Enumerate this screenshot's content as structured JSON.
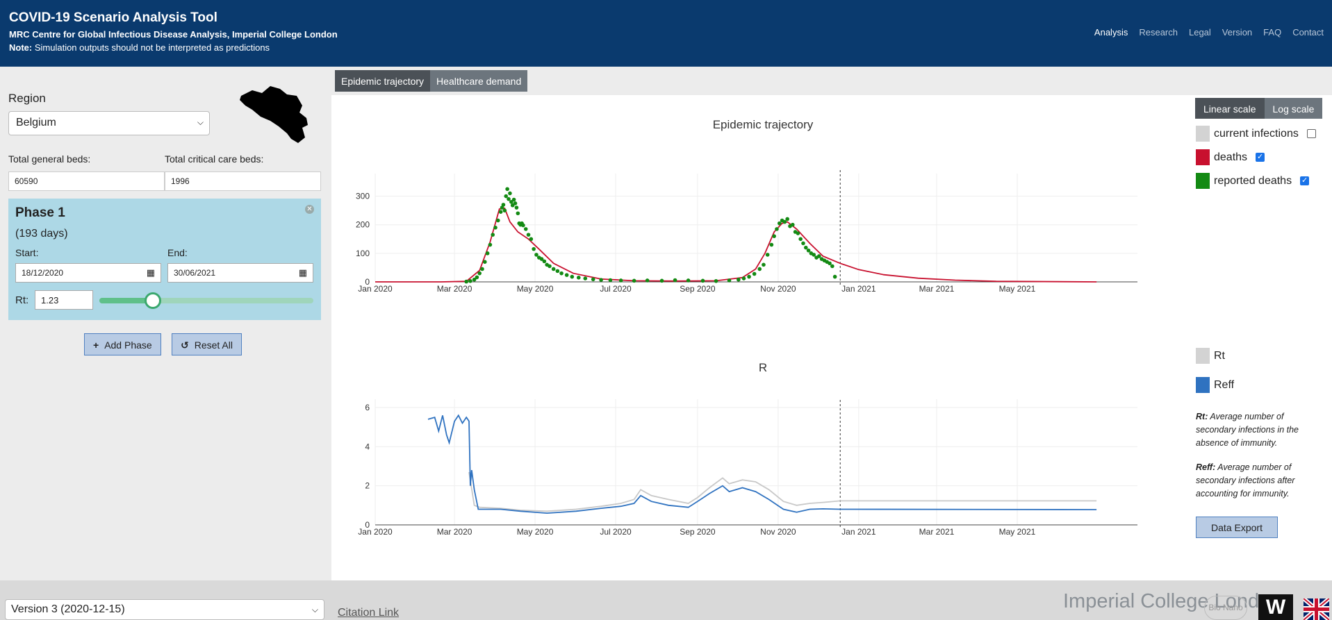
{
  "header": {
    "title": "COVID-19 Scenario Analysis Tool",
    "subtitle": "MRC Centre for Global Infectious Disease Analysis, Imperial College London",
    "note_label": "Note:",
    "note_text": "Simulation outputs should not be interpreted as predictions",
    "nav": [
      "Analysis",
      "Research",
      "Legal",
      "Version",
      "FAQ",
      "Contact"
    ],
    "active_nav": "Analysis"
  },
  "sidebar": {
    "region_label": "Region",
    "region_value": "Belgium",
    "general_beds_label": "Total general beds:",
    "general_beds_value": "60590",
    "critical_beds_label": "Total critical care beds:",
    "critical_beds_value": "1996",
    "phase": {
      "title": "Phase 1",
      "days": "(193 days)",
      "start_label": "Start:",
      "start_value": "18/12/2020",
      "end_label": "End:",
      "end_value": "30/06/2021",
      "rt_label": "Rt:",
      "rt_value": "1.23",
      "slider_fraction": 0.25
    },
    "add_phase_label": "Add Phase",
    "reset_label": "Reset All"
  },
  "tabs": [
    "Epidemic trajectory",
    "Healthcare demand"
  ],
  "scale_buttons": [
    "Linear scale",
    "Log scale"
  ],
  "legend_top": [
    {
      "label": "current infections",
      "color": "#d3d3d3",
      "checked": false
    },
    {
      "label": "deaths",
      "color": "#c8102e",
      "checked": true
    },
    {
      "label": "reported deaths",
      "color": "#138a13",
      "checked": true
    }
  ],
  "legend_bottom": [
    {
      "label": "Rt",
      "color": "#d3d3d3"
    },
    {
      "label": "Reff",
      "color": "#2f72c0"
    }
  ],
  "notes": {
    "rt_term": "Rt:",
    "rt_desc": "Average number of secondary infections in the absence of immunity.",
    "reff_term": "Reff:",
    "reff_desc": "Average number of secondary infections after accounting for immunity."
  },
  "export_label": "Data Export",
  "footer": {
    "version": "Version 3 (2020-12-15)",
    "citation": "Citation Link",
    "logo_imperial": "Imperial College London",
    "logo_bionano": "Bio Nano",
    "logo_w": "W"
  },
  "chart_data": [
    {
      "type": "line",
      "title": "Epidemic trajectory",
      "x_ticks": [
        "Jan 2020",
        "Mar 2020",
        "May 2020",
        "Jul 2020",
        "Sep 2020",
        "Nov 2020",
        "Jan 2021",
        "Mar 2021",
        "May 2021"
      ],
      "y_ticks": [
        0,
        100,
        200,
        300
      ],
      "ylim": [
        0,
        350
      ],
      "vline_date": "2020-12-18",
      "series": [
        {
          "name": "deaths",
          "color": "#c8102e",
          "points": [
            [
              "2020-01-01",
              0
            ],
            [
              "2020-02-20",
              0
            ],
            [
              "2020-03-10",
              2
            ],
            [
              "2020-03-20",
              40
            ],
            [
              "2020-03-28",
              140
            ],
            [
              "2020-04-04",
              255
            ],
            [
              "2020-04-08",
              258
            ],
            [
              "2020-04-12",
              210
            ],
            [
              "2020-04-18",
              175
            ],
            [
              "2020-04-26",
              150
            ],
            [
              "2020-05-05",
              110
            ],
            [
              "2020-05-15",
              65
            ],
            [
              "2020-05-30",
              30
            ],
            [
              "2020-06-20",
              10
            ],
            [
              "2020-07-15",
              4
            ],
            [
              "2020-08-15",
              3
            ],
            [
              "2020-09-15",
              4
            ],
            [
              "2020-10-05",
              15
            ],
            [
              "2020-10-15",
              45
            ],
            [
              "2020-10-22",
              100
            ],
            [
              "2020-10-29",
              175
            ],
            [
              "2020-11-04",
              205
            ],
            [
              "2020-11-08",
              210
            ],
            [
              "2020-11-15",
              185
            ],
            [
              "2020-11-25",
              135
            ],
            [
              "2020-12-05",
              90
            ],
            [
              "2020-12-18",
              65
            ],
            [
              "2021-01-01",
              43
            ],
            [
              "2021-01-20",
              25
            ],
            [
              "2021-02-15",
              13
            ],
            [
              "2021-03-15",
              6
            ],
            [
              "2021-04-15",
              2
            ],
            [
              "2021-06-30",
              0
            ]
          ]
        },
        {
          "name": "reported deaths",
          "color": "#138a13",
          "scatter": true,
          "points": [
            [
              "2020-03-10",
              1
            ],
            [
              "2020-03-13",
              3
            ],
            [
              "2020-03-16",
              8
            ],
            [
              "2020-03-18",
              16
            ],
            [
              "2020-03-20",
              30
            ],
            [
              "2020-03-22",
              45
            ],
            [
              "2020-03-24",
              70
            ],
            [
              "2020-03-26",
              100
            ],
            [
              "2020-03-28",
              130
            ],
            [
              "2020-03-30",
              165
            ],
            [
              "2020-04-01",
              190
            ],
            [
              "2020-04-03",
              215
            ],
            [
              "2020-04-05",
              245
            ],
            [
              "2020-04-06",
              260
            ],
            [
              "2020-04-07",
              270
            ],
            [
              "2020-04-08",
              250
            ],
            [
              "2020-04-09",
              300
            ],
            [
              "2020-04-10",
              325
            ],
            [
              "2020-04-11",
              290
            ],
            [
              "2020-04-12",
              310
            ],
            [
              "2020-04-13",
              280
            ],
            [
              "2020-04-14",
              268
            ],
            [
              "2020-04-15",
              288
            ],
            [
              "2020-04-16",
              275
            ],
            [
              "2020-04-17",
              260
            ],
            [
              "2020-04-18",
              240
            ],
            [
              "2020-04-19",
              205
            ],
            [
              "2020-04-20",
              200
            ],
            [
              "2020-04-21",
              205
            ],
            [
              "2020-04-22",
              198
            ],
            [
              "2020-04-24",
              185
            ],
            [
              "2020-04-26",
              165
            ],
            [
              "2020-04-28",
              150
            ],
            [
              "2020-04-30",
              115
            ],
            [
              "2020-05-02",
              95
            ],
            [
              "2020-05-04",
              85
            ],
            [
              "2020-05-06",
              80
            ],
            [
              "2020-05-08",
              72
            ],
            [
              "2020-05-10",
              60
            ],
            [
              "2020-05-12",
              55
            ],
            [
              "2020-05-15",
              45
            ],
            [
              "2020-05-18",
              38
            ],
            [
              "2020-05-21",
              30
            ],
            [
              "2020-05-25",
              24
            ],
            [
              "2020-05-29",
              18
            ],
            [
              "2020-06-03",
              15
            ],
            [
              "2020-06-08",
              12
            ],
            [
              "2020-06-14",
              9
            ],
            [
              "2020-06-20",
              7
            ],
            [
              "2020-06-27",
              6
            ],
            [
              "2020-07-05",
              5
            ],
            [
              "2020-07-15",
              4
            ],
            [
              "2020-07-25",
              5
            ],
            [
              "2020-08-05",
              4
            ],
            [
              "2020-08-15",
              6
            ],
            [
              "2020-08-25",
              5
            ],
            [
              "2020-09-05",
              4
            ],
            [
              "2020-09-15",
              3
            ],
            [
              "2020-09-25",
              5
            ],
            [
              "2020-10-02",
              8
            ],
            [
              "2020-10-06",
              12
            ],
            [
              "2020-10-10",
              18
            ],
            [
              "2020-10-14",
              28
            ],
            [
              "2020-10-18",
              45
            ],
            [
              "2020-10-21",
              60
            ],
            [
              "2020-10-24",
              95
            ],
            [
              "2020-10-27",
              130
            ],
            [
              "2020-10-29",
              160
            ],
            [
              "2020-10-31",
              185
            ],
            [
              "2020-11-02",
              205
            ],
            [
              "2020-11-04",
              215
            ],
            [
              "2020-11-06",
              210
            ],
            [
              "2020-11-08",
              220
            ],
            [
              "2020-11-10",
              195
            ],
            [
              "2020-11-12",
              200
            ],
            [
              "2020-11-14",
              175
            ],
            [
              "2020-11-16",
              170
            ],
            [
              "2020-11-18",
              150
            ],
            [
              "2020-11-20",
              135
            ],
            [
              "2020-11-22",
              120
            ],
            [
              "2020-11-24",
              110
            ],
            [
              "2020-11-26",
              100
            ],
            [
              "2020-11-28",
              95
            ],
            [
              "2020-11-30",
              85
            ],
            [
              "2020-12-02",
              90
            ],
            [
              "2020-12-04",
              80
            ],
            [
              "2020-12-06",
              75
            ],
            [
              "2020-12-08",
              70
            ],
            [
              "2020-12-10",
              65
            ],
            [
              "2020-12-12",
              55
            ],
            [
              "2020-12-14",
              18
            ]
          ]
        }
      ]
    },
    {
      "type": "line",
      "title": "R",
      "x_ticks": [
        "Jan 2020",
        "Mar 2020",
        "May 2020",
        "Jul 2020",
        "Sep 2020",
        "Nov 2020",
        "Jan 2021",
        "Mar 2021",
        "May 2021"
      ],
      "y_ticks": [
        0,
        2,
        4,
        6
      ],
      "ylim": [
        0,
        6
      ],
      "vline_date": "2020-12-18",
      "series": [
        {
          "name": "Rt",
          "color": "#c8c8c8",
          "points": [
            [
              "2020-03-12",
              2.7
            ],
            [
              "2020-03-16",
              1.0
            ],
            [
              "2020-03-20",
              0.9
            ],
            [
              "2020-04-05",
              0.85
            ],
            [
              "2020-04-20",
              0.75
            ],
            [
              "2020-05-10",
              0.7
            ],
            [
              "2020-06-01",
              0.8
            ],
            [
              "2020-06-20",
              0.95
            ],
            [
              "2020-07-05",
              1.1
            ],
            [
              "2020-07-15",
              1.3
            ],
            [
              "2020-07-20",
              1.8
            ],
            [
              "2020-07-28",
              1.5
            ],
            [
              "2020-08-10",
              1.3
            ],
            [
              "2020-08-25",
              1.1
            ],
            [
              "2020-09-01",
              1.4
            ],
            [
              "2020-09-10",
              1.9
            ],
            [
              "2020-09-20",
              2.4
            ],
            [
              "2020-09-25",
              2.1
            ],
            [
              "2020-10-05",
              2.3
            ],
            [
              "2020-10-15",
              2.2
            ],
            [
              "2020-10-25",
              1.8
            ],
            [
              "2020-11-05",
              1.2
            ],
            [
              "2020-11-15",
              1.0
            ],
            [
              "2020-11-25",
              1.1
            ],
            [
              "2020-12-05",
              1.15
            ],
            [
              "2020-12-18",
              1.23
            ],
            [
              "2021-06-30",
              1.23
            ]
          ]
        },
        {
          "name": "Reff",
          "color": "#2f72c0",
          "points": [
            [
              "2020-02-10",
              5.4
            ],
            [
              "2020-02-15",
              5.5
            ],
            [
              "2020-02-18",
              4.8
            ],
            [
              "2020-02-21",
              5.6
            ],
            [
              "2020-02-24",
              4.6
            ],
            [
              "2020-02-26",
              4.2
            ],
            [
              "2020-03-01",
              5.3
            ],
            [
              "2020-03-04",
              5.6
            ],
            [
              "2020-03-07",
              5.2
            ],
            [
              "2020-03-10",
              5.5
            ],
            [
              "2020-03-12",
              5.3
            ],
            [
              "2020-03-13",
              2.0
            ],
            [
              "2020-03-14",
              2.8
            ],
            [
              "2020-03-16",
              1.8
            ],
            [
              "2020-03-19",
              0.8
            ],
            [
              "2020-04-05",
              0.8
            ],
            [
              "2020-04-20",
              0.7
            ],
            [
              "2020-05-10",
              0.6
            ],
            [
              "2020-06-01",
              0.7
            ],
            [
              "2020-06-20",
              0.85
            ],
            [
              "2020-07-05",
              0.95
            ],
            [
              "2020-07-15",
              1.1
            ],
            [
              "2020-07-20",
              1.5
            ],
            [
              "2020-07-28",
              1.2
            ],
            [
              "2020-08-10",
              1.0
            ],
            [
              "2020-08-25",
              0.9
            ],
            [
              "2020-09-01",
              1.2
            ],
            [
              "2020-09-10",
              1.6
            ],
            [
              "2020-09-20",
              2.0
            ],
            [
              "2020-09-25",
              1.7
            ],
            [
              "2020-10-05",
              1.9
            ],
            [
              "2020-10-15",
              1.7
            ],
            [
              "2020-10-25",
              1.3
            ],
            [
              "2020-11-05",
              0.8
            ],
            [
              "2020-11-15",
              0.65
            ],
            [
              "2020-11-25",
              0.8
            ],
            [
              "2020-12-05",
              0.82
            ],
            [
              "2020-12-18",
              0.8
            ],
            [
              "2021-06-30",
              0.78
            ]
          ]
        }
      ]
    }
  ]
}
